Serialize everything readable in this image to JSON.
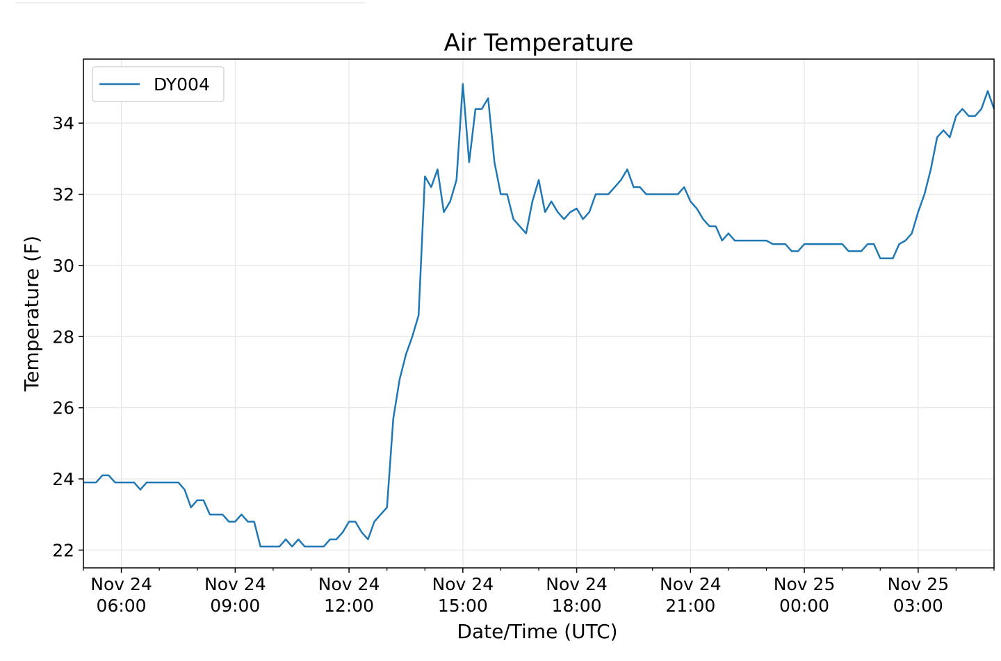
{
  "chart_data": {
    "type": "line",
    "title": "Air Temperature",
    "xlabel": "Date/Time (UTC)",
    "ylabel": "Temperature (F)",
    "ylim": [
      21.5,
      35.8
    ],
    "xlim": [
      "2023-11-24T05:00",
      "2023-11-25T05:00"
    ],
    "grid": true,
    "legend_position": "top-left",
    "y_ticks": [
      22,
      24,
      26,
      28,
      30,
      32,
      34
    ],
    "x_ticks": [
      {
        "t": "2023-11-24T06:00",
        "line1": "Nov 24",
        "line2": "06:00"
      },
      {
        "t": "2023-11-24T09:00",
        "line1": "Nov 24",
        "line2": "09:00"
      },
      {
        "t": "2023-11-24T12:00",
        "line1": "Nov 24",
        "line2": "12:00"
      },
      {
        "t": "2023-11-24T15:00",
        "line1": "Nov 24",
        "line2": "15:00"
      },
      {
        "t": "2023-11-24T18:00",
        "line1": "Nov 24",
        "line2": "18:00"
      },
      {
        "t": "2023-11-24T21:00",
        "line1": "Nov 24",
        "line2": "21:00"
      },
      {
        "t": "2023-11-25T00:00",
        "line1": "Nov 25",
        "line2": "00:00"
      },
      {
        "t": "2023-11-25T03:00",
        "line1": "Nov 25",
        "line2": "03:00"
      }
    ],
    "series": [
      {
        "name": "DY004",
        "color": "#1f77b4",
        "points": [
          [
            "2023-11-24T05:00",
            23.9
          ],
          [
            "2023-11-24T05:10",
            23.9
          ],
          [
            "2023-11-24T05:20",
            23.9
          ],
          [
            "2023-11-24T05:30",
            24.1
          ],
          [
            "2023-11-24T05:40",
            24.1
          ],
          [
            "2023-11-24T05:50",
            23.9
          ],
          [
            "2023-11-24T06:00",
            23.9
          ],
          [
            "2023-11-24T06:10",
            23.9
          ],
          [
            "2023-11-24T06:20",
            23.9
          ],
          [
            "2023-11-24T06:30",
            23.7
          ],
          [
            "2023-11-24T06:40",
            23.9
          ],
          [
            "2023-11-24T06:50",
            23.9
          ],
          [
            "2023-11-24T07:00",
            23.9
          ],
          [
            "2023-11-24T07:10",
            23.9
          ],
          [
            "2023-11-24T07:20",
            23.9
          ],
          [
            "2023-11-24T07:30",
            23.9
          ],
          [
            "2023-11-24T07:40",
            23.7
          ],
          [
            "2023-11-24T07:50",
            23.2
          ],
          [
            "2023-11-24T08:00",
            23.4
          ],
          [
            "2023-11-24T08:10",
            23.4
          ],
          [
            "2023-11-24T08:20",
            23.0
          ],
          [
            "2023-11-24T08:30",
            23.0
          ],
          [
            "2023-11-24T08:40",
            23.0
          ],
          [
            "2023-11-24T08:50",
            22.8
          ],
          [
            "2023-11-24T09:00",
            22.8
          ],
          [
            "2023-11-24T09:10",
            23.0
          ],
          [
            "2023-11-24T09:20",
            22.8
          ],
          [
            "2023-11-24T09:30",
            22.8
          ],
          [
            "2023-11-24T09:40",
            22.1
          ],
          [
            "2023-11-24T09:50",
            22.1
          ],
          [
            "2023-11-24T10:00",
            22.1
          ],
          [
            "2023-11-24T10:10",
            22.1
          ],
          [
            "2023-11-24T10:20",
            22.3
          ],
          [
            "2023-11-24T10:30",
            22.1
          ],
          [
            "2023-11-24T10:40",
            22.3
          ],
          [
            "2023-11-24T10:50",
            22.1
          ],
          [
            "2023-11-24T11:00",
            22.1
          ],
          [
            "2023-11-24T11:10",
            22.1
          ],
          [
            "2023-11-24T11:20",
            22.1
          ],
          [
            "2023-11-24T11:30",
            22.3
          ],
          [
            "2023-11-24T11:40",
            22.3
          ],
          [
            "2023-11-24T11:50",
            22.5
          ],
          [
            "2023-11-24T12:00",
            22.8
          ],
          [
            "2023-11-24T12:10",
            22.8
          ],
          [
            "2023-11-24T12:20",
            22.5
          ],
          [
            "2023-11-24T12:30",
            22.3
          ],
          [
            "2023-11-24T12:40",
            22.8
          ],
          [
            "2023-11-24T12:50",
            23.0
          ],
          [
            "2023-11-24T13:00",
            23.2
          ],
          [
            "2023-11-24T13:10",
            25.7
          ],
          [
            "2023-11-24T13:20",
            26.8
          ],
          [
            "2023-11-24T13:30",
            27.5
          ],
          [
            "2023-11-24T13:40",
            28.0
          ],
          [
            "2023-11-24T13:50",
            28.6
          ],
          [
            "2023-11-24T14:00",
            32.5
          ],
          [
            "2023-11-24T14:10",
            32.2
          ],
          [
            "2023-11-24T14:20",
            32.7
          ],
          [
            "2023-11-24T14:30",
            31.5
          ],
          [
            "2023-11-24T14:40",
            31.8
          ],
          [
            "2023-11-24T14:50",
            32.4
          ],
          [
            "2023-11-24T15:00",
            35.1
          ],
          [
            "2023-11-24T15:10",
            32.9
          ],
          [
            "2023-11-24T15:20",
            34.4
          ],
          [
            "2023-11-24T15:30",
            34.4
          ],
          [
            "2023-11-24T15:40",
            34.7
          ],
          [
            "2023-11-24T15:50",
            32.9
          ],
          [
            "2023-11-24T16:00",
            32.0
          ],
          [
            "2023-11-24T16:10",
            32.0
          ],
          [
            "2023-11-24T16:20",
            31.3
          ],
          [
            "2023-11-24T16:30",
            31.1
          ],
          [
            "2023-11-24T16:40",
            30.9
          ],
          [
            "2023-11-24T16:50",
            31.8
          ],
          [
            "2023-11-24T17:00",
            32.4
          ],
          [
            "2023-11-24T17:10",
            31.5
          ],
          [
            "2023-11-24T17:20",
            31.8
          ],
          [
            "2023-11-24T17:30",
            31.5
          ],
          [
            "2023-11-24T17:40",
            31.3
          ],
          [
            "2023-11-24T17:50",
            31.5
          ],
          [
            "2023-11-24T18:00",
            31.6
          ],
          [
            "2023-11-24T18:10",
            31.3
          ],
          [
            "2023-11-24T18:20",
            31.5
          ],
          [
            "2023-11-24T18:30",
            32.0
          ],
          [
            "2023-11-24T18:40",
            32.0
          ],
          [
            "2023-11-24T18:50",
            32.0
          ],
          [
            "2023-11-24T19:00",
            32.2
          ],
          [
            "2023-11-24T19:10",
            32.4
          ],
          [
            "2023-11-24T19:20",
            32.7
          ],
          [
            "2023-11-24T19:30",
            32.2
          ],
          [
            "2023-11-24T19:40",
            32.2
          ],
          [
            "2023-11-24T19:50",
            32.0
          ],
          [
            "2023-11-24T20:00",
            32.0
          ],
          [
            "2023-11-24T20:10",
            32.0
          ],
          [
            "2023-11-24T20:20",
            32.0
          ],
          [
            "2023-11-24T20:30",
            32.0
          ],
          [
            "2023-11-24T20:40",
            32.0
          ],
          [
            "2023-11-24T20:50",
            32.2
          ],
          [
            "2023-11-24T21:00",
            31.8
          ],
          [
            "2023-11-24T21:10",
            31.6
          ],
          [
            "2023-11-24T21:20",
            31.3
          ],
          [
            "2023-11-24T21:30",
            31.1
          ],
          [
            "2023-11-24T21:40",
            31.1
          ],
          [
            "2023-11-24T21:50",
            30.7
          ],
          [
            "2023-11-24T22:00",
            30.9
          ],
          [
            "2023-11-24T22:10",
            30.7
          ],
          [
            "2023-11-24T22:20",
            30.7
          ],
          [
            "2023-11-24T22:30",
            30.7
          ],
          [
            "2023-11-24T22:40",
            30.7
          ],
          [
            "2023-11-24T22:50",
            30.7
          ],
          [
            "2023-11-24T23:00",
            30.7
          ],
          [
            "2023-11-24T23:10",
            30.6
          ],
          [
            "2023-11-24T23:20",
            30.6
          ],
          [
            "2023-11-24T23:30",
            30.6
          ],
          [
            "2023-11-24T23:40",
            30.4
          ],
          [
            "2023-11-24T23:50",
            30.4
          ],
          [
            "2023-11-25T00:00",
            30.6
          ],
          [
            "2023-11-25T00:10",
            30.6
          ],
          [
            "2023-11-25T00:20",
            30.6
          ],
          [
            "2023-11-25T00:30",
            30.6
          ],
          [
            "2023-11-25T00:40",
            30.6
          ],
          [
            "2023-11-25T00:50",
            30.6
          ],
          [
            "2023-11-25T01:00",
            30.6
          ],
          [
            "2023-11-25T01:10",
            30.4
          ],
          [
            "2023-11-25T01:20",
            30.4
          ],
          [
            "2023-11-25T01:30",
            30.4
          ],
          [
            "2023-11-25T01:40",
            30.6
          ],
          [
            "2023-11-25T01:50",
            30.6
          ],
          [
            "2023-11-25T02:00",
            30.2
          ],
          [
            "2023-11-25T02:10",
            30.2
          ],
          [
            "2023-11-25T02:20",
            30.2
          ],
          [
            "2023-11-25T02:30",
            30.6
          ],
          [
            "2023-11-25T02:40",
            30.7
          ],
          [
            "2023-11-25T02:50",
            30.9
          ],
          [
            "2023-11-25T03:00",
            31.5
          ],
          [
            "2023-11-25T03:10",
            32.0
          ],
          [
            "2023-11-25T03:20",
            32.7
          ],
          [
            "2023-11-25T03:30",
            33.6
          ],
          [
            "2023-11-25T03:40",
            33.8
          ],
          [
            "2023-11-25T03:50",
            33.6
          ],
          [
            "2023-11-25T04:00",
            34.2
          ],
          [
            "2023-11-25T04:10",
            34.4
          ],
          [
            "2023-11-25T04:20",
            34.2
          ],
          [
            "2023-11-25T04:30",
            34.2
          ],
          [
            "2023-11-25T04:40",
            34.4
          ],
          [
            "2023-11-25T04:50",
            34.9
          ],
          [
            "2023-11-25T05:00",
            34.4
          ]
        ]
      }
    ]
  }
}
